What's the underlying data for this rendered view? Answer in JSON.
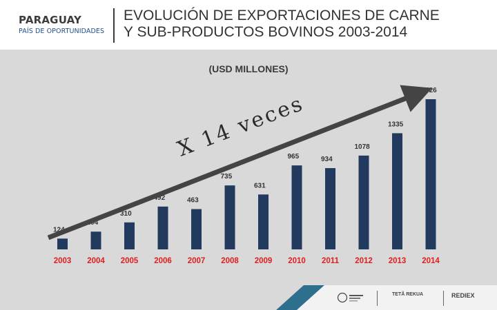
{
  "brand": {
    "name": "PARAGUAY",
    "tagline": "PAÍS DE OPORTUNIDADES"
  },
  "slide_title": "EVOLUCIÓN DE EXPORTACIONES DE CARNE\nY SUB-PRODUCTOS BOVINOS 2003-2014",
  "unit_label": "(USD MILLONES)",
  "annotation": "X 14 veces",
  "colors": {
    "bar": "#233a5f",
    "year_label": "#e01e1e",
    "arrow": "#444444"
  },
  "chart_data": {
    "type": "bar",
    "title": "EVOLUCIÓN DE EXPORTACIONES DE CARNE Y SUB-PRODUCTOS BOVINOS 2003-2014",
    "ylabel": "(USD MILLONES)",
    "xlabel": "",
    "categories": [
      "2003",
      "2004",
      "2005",
      "2006",
      "2007",
      "2008",
      "2009",
      "2010",
      "2011",
      "2012",
      "2013",
      "2014"
    ],
    "values": [
      124,
      204,
      310,
      492,
      463,
      735,
      631,
      965,
      934,
      1078,
      1335,
      1726
    ],
    "ylim": [
      0,
      1800
    ],
    "grid": false,
    "annotation": "X 14 veces"
  },
  "footer": {
    "logos": [
      {
        "name": "ministerio-logo"
      },
      {
        "name": "tetarekua-logo",
        "text": "TETÃ REKUA"
      },
      {
        "name": "rediex-logo",
        "text": "REDIEX"
      }
    ]
  }
}
